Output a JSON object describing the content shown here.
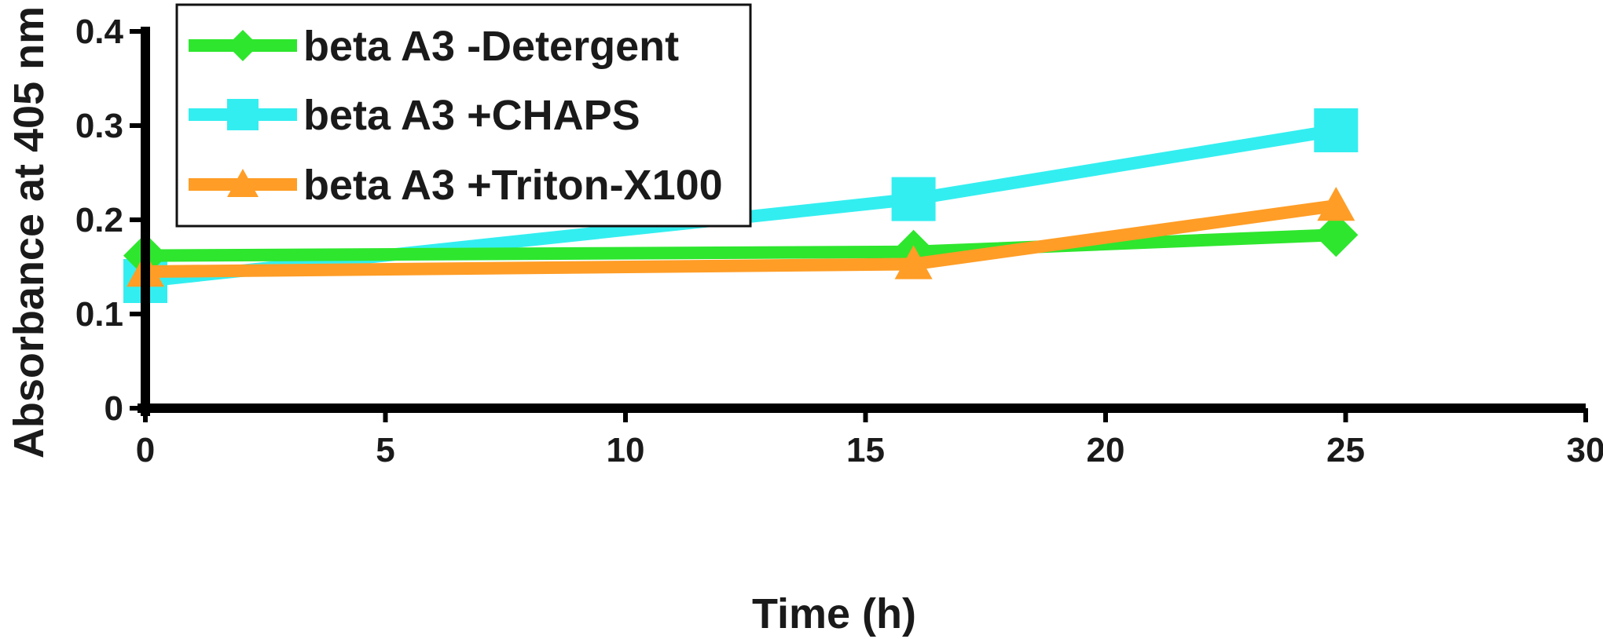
{
  "chart_data": {
    "type": "line",
    "xlabel": "Time (h)",
    "ylabel": "Absorbance at 405 nm",
    "xlim": [
      0,
      30
    ],
    "ylim": [
      0,
      0.4
    ],
    "xticks": [
      0,
      5,
      10,
      15,
      20,
      25,
      30
    ],
    "yticks": [
      0,
      0.1,
      0.2,
      0.3,
      0.4
    ],
    "xtick_labels": [
      "0",
      "5",
      "10",
      "15",
      "20",
      "25",
      "30"
    ],
    "ytick_labels": [
      "0",
      "0.1",
      "0.2",
      "0.3",
      "0.4"
    ],
    "grid": false,
    "legend_position": "top-left",
    "series": [
      {
        "name": "beta A3 -Detergent",
        "color": "#2ee62e",
        "marker": "diamond",
        "x": [
          0,
          16,
          24.8
        ],
        "y": [
          0.162,
          0.166,
          0.184
        ]
      },
      {
        "name": "beta A3 +CHAPS",
        "color": "#33eef0",
        "marker": "square",
        "x": [
          0,
          16,
          24.8
        ],
        "y": [
          0.135,
          0.222,
          0.295
        ]
      },
      {
        "name": "beta A3 +Triton-X100",
        "color": "#ff9d26",
        "marker": "triangle",
        "x": [
          0,
          16,
          24.8
        ],
        "y": [
          0.145,
          0.153,
          0.215
        ]
      }
    ]
  }
}
